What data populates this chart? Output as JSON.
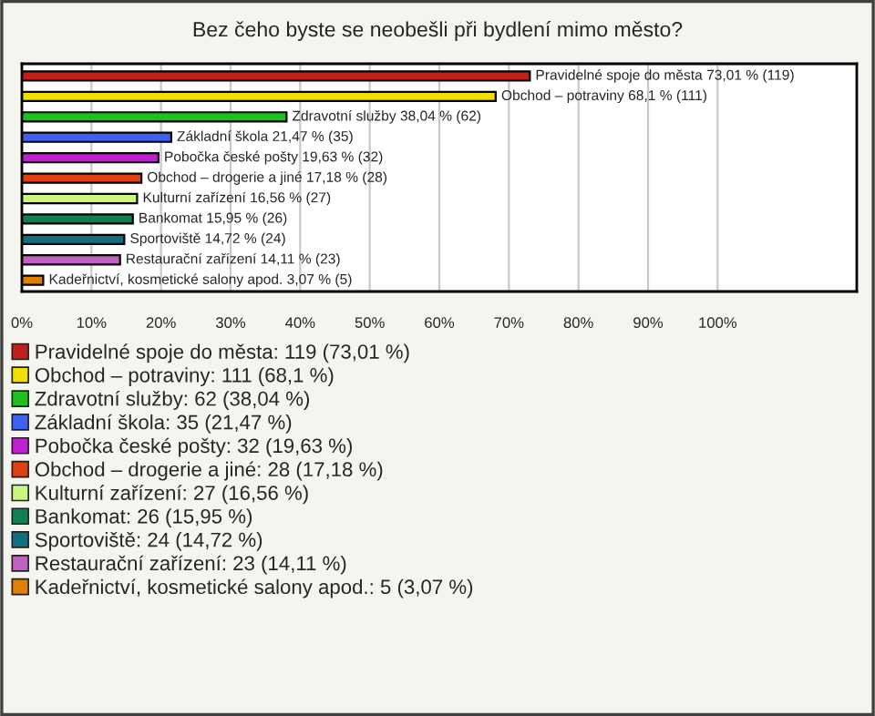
{
  "chart_data": {
    "type": "bar",
    "orientation": "horizontal",
    "title": "Bez čeho byste se neobešli při bydlení mimo město?",
    "categories": [
      "Pravidelné spoje do města",
      "Obchod – potraviny",
      "Zdravotní služby",
      "Základní škola",
      "Pobočka české pošty",
      "Obchod – drogerie a jiné",
      "Kulturní zařízení",
      "Bankomat",
      "Sportoviště",
      "Restaurační zařízení",
      "Kadeřnictví, kosmetické salony apod."
    ],
    "series": [
      {
        "name": "Pravidelné spoje do města: 119 (73,01 %)",
        "color": "#c0201a",
        "values": [
          73.01,
          null,
          null,
          null,
          null,
          null,
          null,
          null,
          null,
          null,
          null
        ],
        "value_labels": [
          "73,01 % (119)",
          null,
          null,
          null,
          null,
          null,
          null,
          null,
          null,
          null,
          null
        ]
      },
      {
        "name": "Obchod – potraviny: 111 (68,1 %)",
        "color": "#f0e000",
        "values": [
          null,
          68.1,
          null,
          null,
          null,
          null,
          null,
          null,
          null,
          null,
          null
        ],
        "value_labels": [
          null,
          "68,1 % (111)",
          null,
          null,
          null,
          null,
          null,
          null,
          null,
          null,
          null
        ]
      },
      {
        "name": "Zdravotní služby: 62 (38,04 %)",
        "color": "#20c020",
        "values": [
          null,
          null,
          38.04,
          null,
          null,
          null,
          null,
          null,
          null,
          null,
          null
        ],
        "value_labels": [
          null,
          null,
          "38,04 % (62)",
          null,
          null,
          null,
          null,
          null,
          null,
          null,
          null
        ]
      },
      {
        "name": "Základní škola: 35 (21,47 %)",
        "color": "#4060f0",
        "values": [
          null,
          null,
          null,
          21.47,
          null,
          null,
          null,
          null,
          null,
          null,
          null
        ],
        "value_labels": [
          null,
          null,
          null,
          "21,47 % (35)",
          null,
          null,
          null,
          null,
          null,
          null,
          null
        ]
      },
      {
        "name": "Pobočka české pošty: 32 (19,63 %)",
        "color": "#c020d0",
        "values": [
          null,
          null,
          null,
          null,
          19.63,
          null,
          null,
          null,
          null,
          null,
          null
        ],
        "value_labels": [
          null,
          null,
          null,
          null,
          "19,63 % (32)",
          null,
          null,
          null,
          null,
          null,
          null
        ]
      },
      {
        "name": "Obchod – drogerie a jiné: 28 (17,18 %)",
        "color": "#e04010",
        "values": [
          null,
          null,
          null,
          null,
          null,
          17.18,
          null,
          null,
          null,
          null,
          null
        ],
        "value_labels": [
          null,
          null,
          null,
          null,
          null,
          "17,18 % (28)",
          null,
          null,
          null,
          null,
          null
        ]
      },
      {
        "name": "Kulturní zařízení: 27 (16,56 %)",
        "color": "#c8f880",
        "values": [
          null,
          null,
          null,
          null,
          null,
          null,
          16.56,
          null,
          null,
          null,
          null
        ],
        "value_labels": [
          null,
          null,
          null,
          null,
          null,
          null,
          "16,56 % (27)",
          null,
          null,
          null,
          null
        ]
      },
      {
        "name": "Bankomat: 26 (15,95 %)",
        "color": "#108050",
        "values": [
          null,
          null,
          null,
          null,
          null,
          null,
          null,
          15.95,
          null,
          null,
          null
        ],
        "value_labels": [
          null,
          null,
          null,
          null,
          null,
          null,
          null,
          "15,95 % (26)",
          null,
          null,
          null
        ]
      },
      {
        "name": "Sportoviště: 24 (14,72 %)",
        "color": "#107080",
        "values": [
          null,
          null,
          null,
          null,
          null,
          null,
          null,
          null,
          14.72,
          null,
          null
        ],
        "value_labels": [
          null,
          null,
          null,
          null,
          null,
          null,
          null,
          null,
          "14,72 % (24)",
          null,
          null
        ]
      },
      {
        "name": "Restaurační zařízení: 23 (14,11 %)",
        "color": "#c060c0",
        "values": [
          null,
          null,
          null,
          null,
          null,
          null,
          null,
          null,
          null,
          14.11,
          null
        ],
        "value_labels": [
          null,
          null,
          null,
          null,
          null,
          null,
          null,
          null,
          null,
          "14,11 % (23)",
          null
        ]
      },
      {
        "name": "Kadeřnictví, kosmetické salony apod.: 5 (3,07 %)",
        "color": "#e08000",
        "values": [
          null,
          null,
          null,
          null,
          null,
          null,
          null,
          null,
          null,
          null,
          3.07
        ],
        "value_labels": [
          null,
          null,
          null,
          null,
          null,
          null,
          null,
          null,
          null,
          null,
          "3,07 % (5)"
        ]
      }
    ],
    "xlim": [
      0,
      120
    ],
    "xticks": [
      {
        "value": 0,
        "label": "0%"
      },
      {
        "value": 10,
        "label": "10%"
      },
      {
        "value": 20,
        "label": "20%"
      },
      {
        "value": 30,
        "label": "30%"
      },
      {
        "value": 40,
        "label": "40%"
      },
      {
        "value": 50,
        "label": "50%"
      },
      {
        "value": 60,
        "label": "60%"
      },
      {
        "value": 70,
        "label": "70%"
      },
      {
        "value": 80,
        "label": "80%"
      },
      {
        "value": 90,
        "label": "90%"
      },
      {
        "value": 100,
        "label": "100%"
      }
    ],
    "grid": "x",
    "legend": "bottom",
    "tick_labels": "x"
  }
}
